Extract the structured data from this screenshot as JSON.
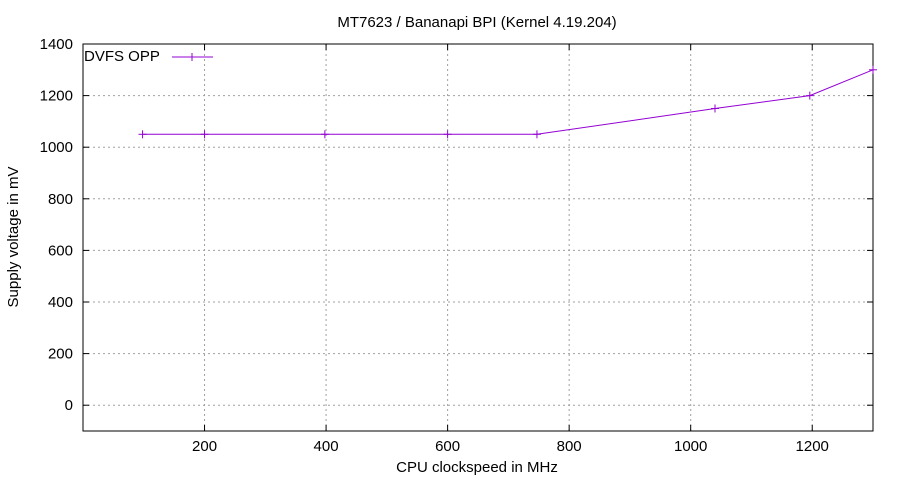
{
  "chart_data": {
    "type": "line",
    "title": "MT7623 / Bananapi BPI (Kernel 4.19.204)",
    "xlabel": "CPU clockspeed in MHz",
    "ylabel": "Supply voltage in mV",
    "xlim": [
      0,
      1300
    ],
    "ylim": [
      -100,
      1400
    ],
    "xticks": [
      200,
      400,
      600,
      800,
      1000,
      1200
    ],
    "yticks": [
      0,
      200,
      400,
      600,
      800,
      1000,
      1200,
      1400
    ],
    "grid": true,
    "legend_position": "top-left",
    "series": [
      {
        "name": "DVFS OPP",
        "color": "#9400d3",
        "marker": "plus",
        "x": [
          98,
          200,
          398,
          600,
          747,
          1040,
          1196,
          1300
        ],
        "y": [
          1050,
          1050,
          1050,
          1050,
          1050,
          1150,
          1200,
          1300
        ]
      }
    ]
  }
}
